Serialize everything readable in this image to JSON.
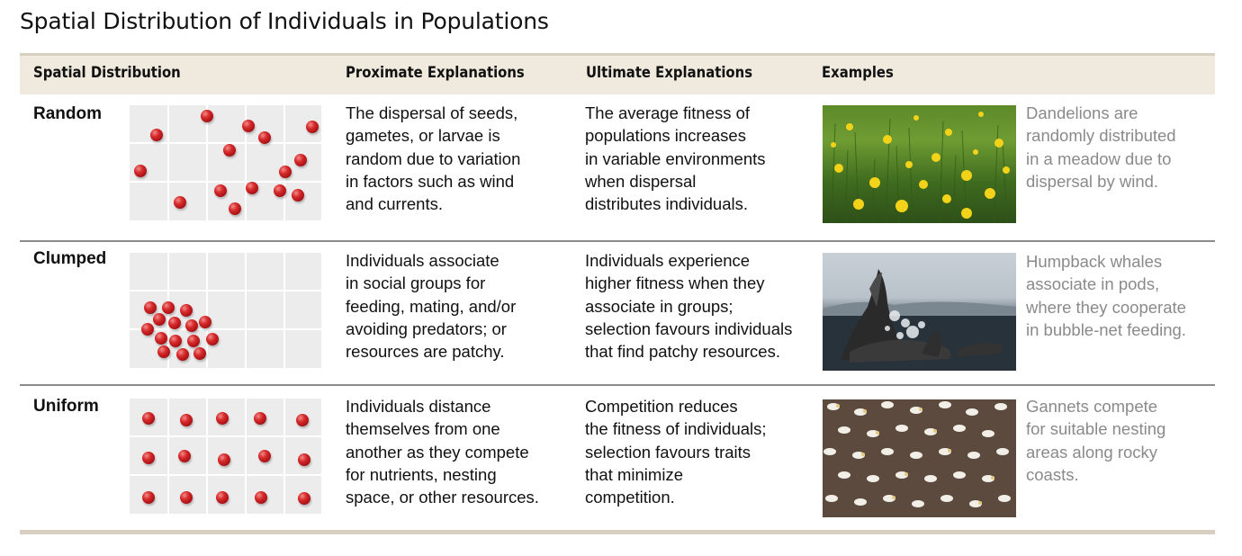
{
  "title": "Spatial Distribution of Individuals in Populations",
  "columns": {
    "spatial": "Spatial Distribution",
    "proximate": "Proximate Explanations",
    "ultimate": "Ultimate Explanations",
    "examples": "Examples"
  },
  "rows": [
    {
      "label": "Random",
      "proximate": [
        "The dispersal of seeds,",
        "gametes, or larvae is",
        "random due to variation",
        "in factors such as wind",
        "and currents."
      ],
      "ultimate": [
        "The average fitness of",
        "populations increases",
        "in variable environments",
        "when dispersal",
        "distributes individuals."
      ],
      "caption": [
        "Dandelions are",
        "randomly distributed",
        "in a meadow due to",
        "dispersal by wind."
      ]
    },
    {
      "label": "Clumped",
      "proximate": [
        "Individuals associate",
        "in social groups for",
        "feeding, mating, and/or",
        "avoiding predators; or",
        "resources are patchy."
      ],
      "ultimate": [
        "Individuals experience",
        "higher fitness when they",
        "associate in groups;",
        "selection favours individuals",
        "that find patchy resources."
      ],
      "caption": [
        "Humpback whales",
        "associate in pods,",
        "where they cooperate",
        "in bubble-net feeding."
      ]
    },
    {
      "label": "Uniform",
      "proximate": [
        "Individuals distance",
        "themselves from one",
        "another as they compete",
        "for nutrients, nesting",
        "space, or other resources."
      ],
      "ultimate": [
        "Competition reduces",
        "the fitness of individuals;",
        "selection favours traits",
        "that minimize",
        "competition."
      ],
      "caption": [
        "Gannets compete",
        "for suitable nesting",
        "areas along rocky",
        "coasts."
      ]
    }
  ],
  "colors": {
    "header_bg": "#efe9de",
    "dot": "#c81f24",
    "caption_text": "#8a8a8a"
  }
}
